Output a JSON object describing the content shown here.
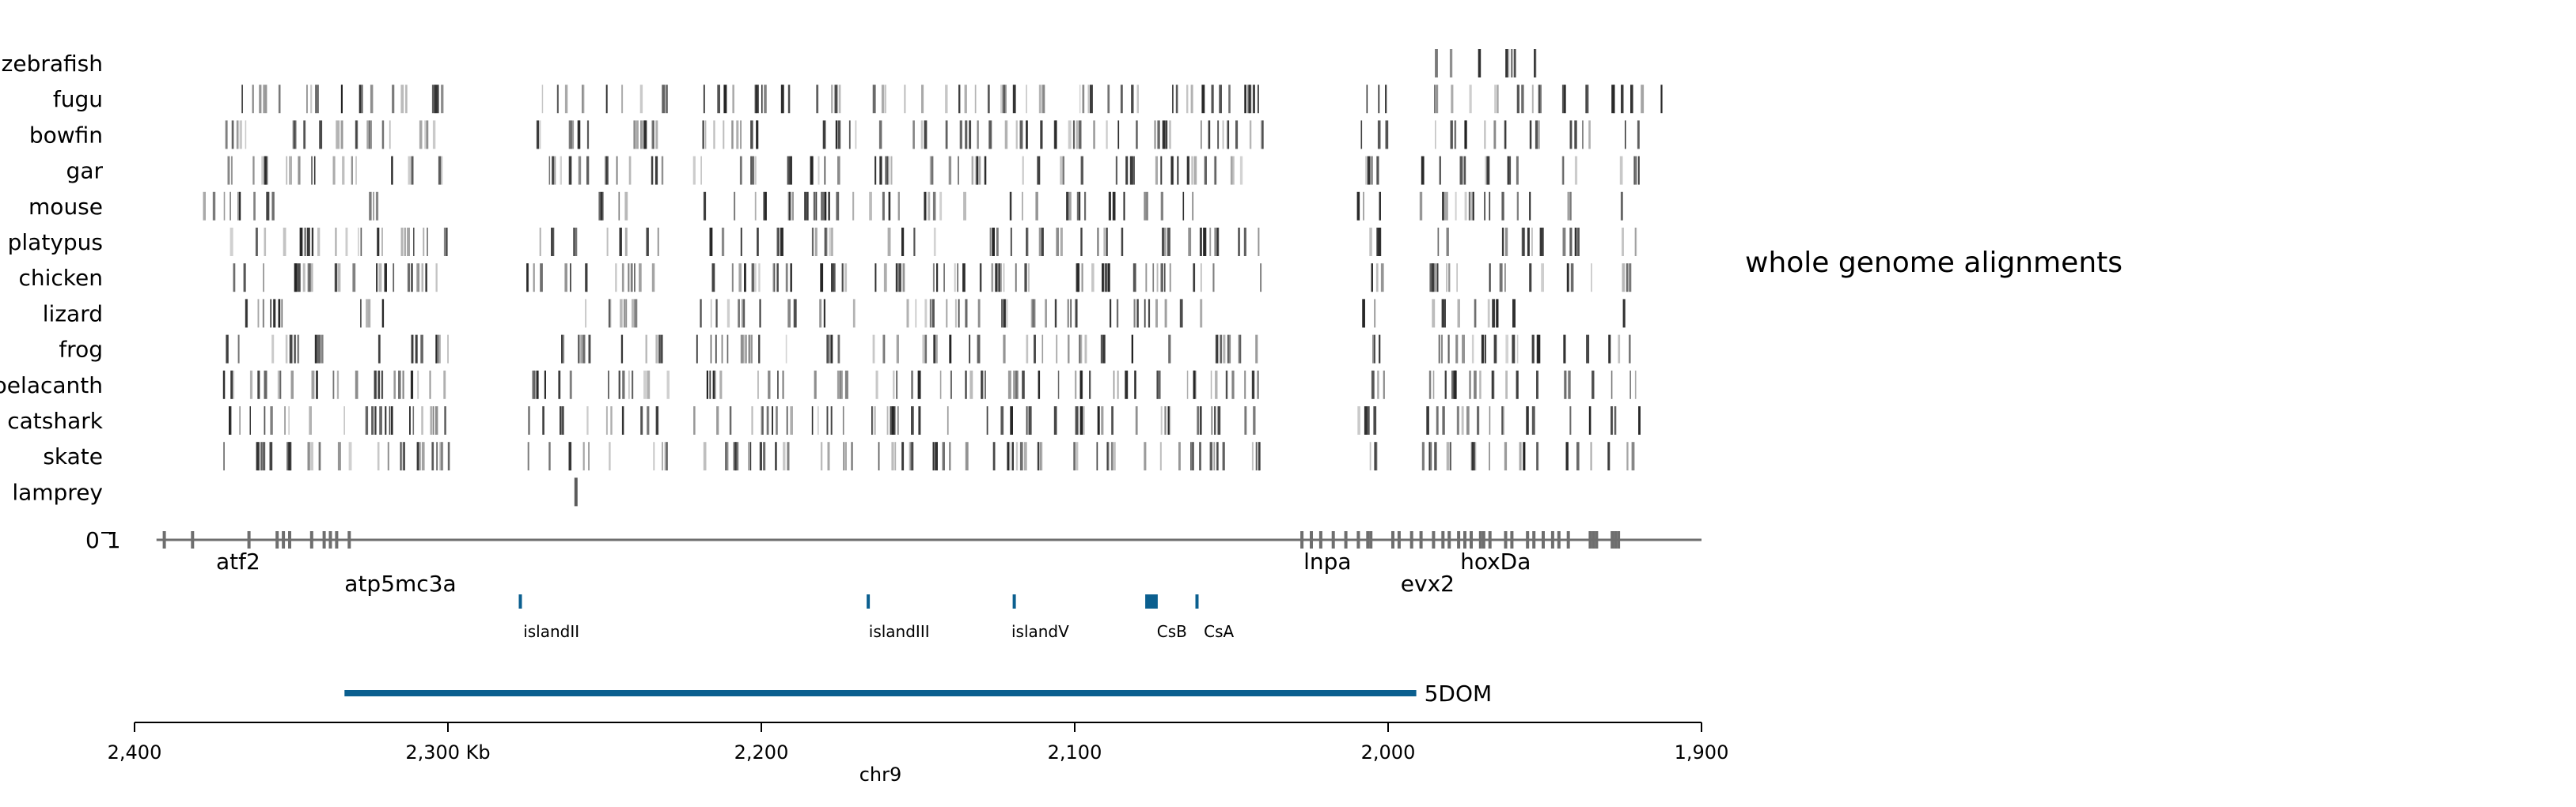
{
  "species": [
    "zebrafish",
    "fugu",
    "bowfin",
    "gar",
    "mouse",
    "platypus",
    "chicken",
    "lizard",
    "frog",
    "coelacanth",
    "catshark",
    "skate",
    "lamprey"
  ],
  "track_label": "whole genome alignments",
  "gene_track": {
    "strand_marks": "0 1",
    "genes": [
      {
        "name": "atf2",
        "pos": 2374
      },
      {
        "name": "atp5mc3a",
        "pos": 2333
      },
      {
        "name": "lnpa",
        "pos": 2027
      },
      {
        "name": "evx2",
        "pos": 1996
      },
      {
        "name": "hoxDa",
        "pos": 1977
      }
    ]
  },
  "islands": [
    {
      "name": "islandII",
      "start": 2277.4,
      "end": 2277.0,
      "label_pos": 2267
    },
    {
      "name": "islandIII",
      "start": 2166.4,
      "end": 2166.0,
      "label_pos": 2156
    },
    {
      "name": "islandV",
      "start": 2119.8,
      "end": 2119.4,
      "label_pos": 2111
    },
    {
      "name": "CsB",
      "start": 2077.5,
      "end": 2073.5,
      "label_pos": 2069
    },
    {
      "name": "CsA",
      "start": 2061.5,
      "end": 2061.0,
      "label_pos": 2054
    }
  ],
  "region": {
    "name": "5DOM",
    "start": 2333,
    "end": 1991
  },
  "axis": {
    "domain": [
      2400,
      1900
    ],
    "ticks": [
      {
        "value": 2400,
        "label": "2,400"
      },
      {
        "value": 2300,
        "label": "2,300 Kb"
      },
      {
        "value": 2200,
        "label": "2,200"
      },
      {
        "value": 2100,
        "label": "2,100"
      },
      {
        "value": 2000,
        "label": "2,000"
      },
      {
        "value": 1900,
        "label": "1,900"
      }
    ],
    "chrom_label": "chr9"
  },
  "colors": {
    "accent": "#0b5f8f",
    "alignment": "#222222",
    "gene": "#6e6e6e",
    "axis": "#000000"
  }
}
